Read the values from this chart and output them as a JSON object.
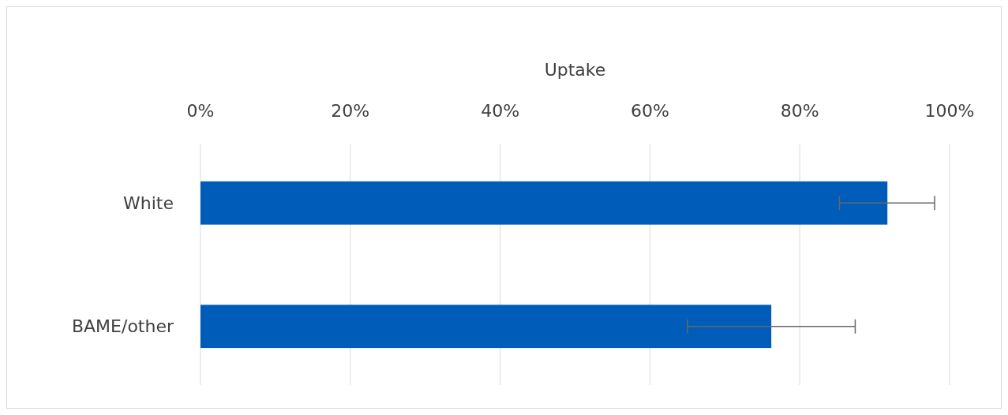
{
  "chart_data": {
    "type": "bar",
    "orientation": "horizontal",
    "xlabel": "Uptake",
    "categories": [
      "White",
      "BAME/other"
    ],
    "values": [
      91.7,
      76.2
    ],
    "color": "#005cb9",
    "errors": [
      [
        85.3,
        98.0
      ],
      [
        65.0,
        87.4
      ]
    ],
    "xlim": [
      0,
      100
    ],
    "xticks": [
      {
        "value": 0,
        "label": "0%"
      },
      {
        "value": 20,
        "label": "20%"
      },
      {
        "value": 40,
        "label": "40%"
      },
      {
        "value": 60,
        "label": "60%"
      },
      {
        "value": 80,
        "label": "80%"
      },
      {
        "value": 100,
        "label": "100%"
      }
    ],
    "grid": "x"
  }
}
